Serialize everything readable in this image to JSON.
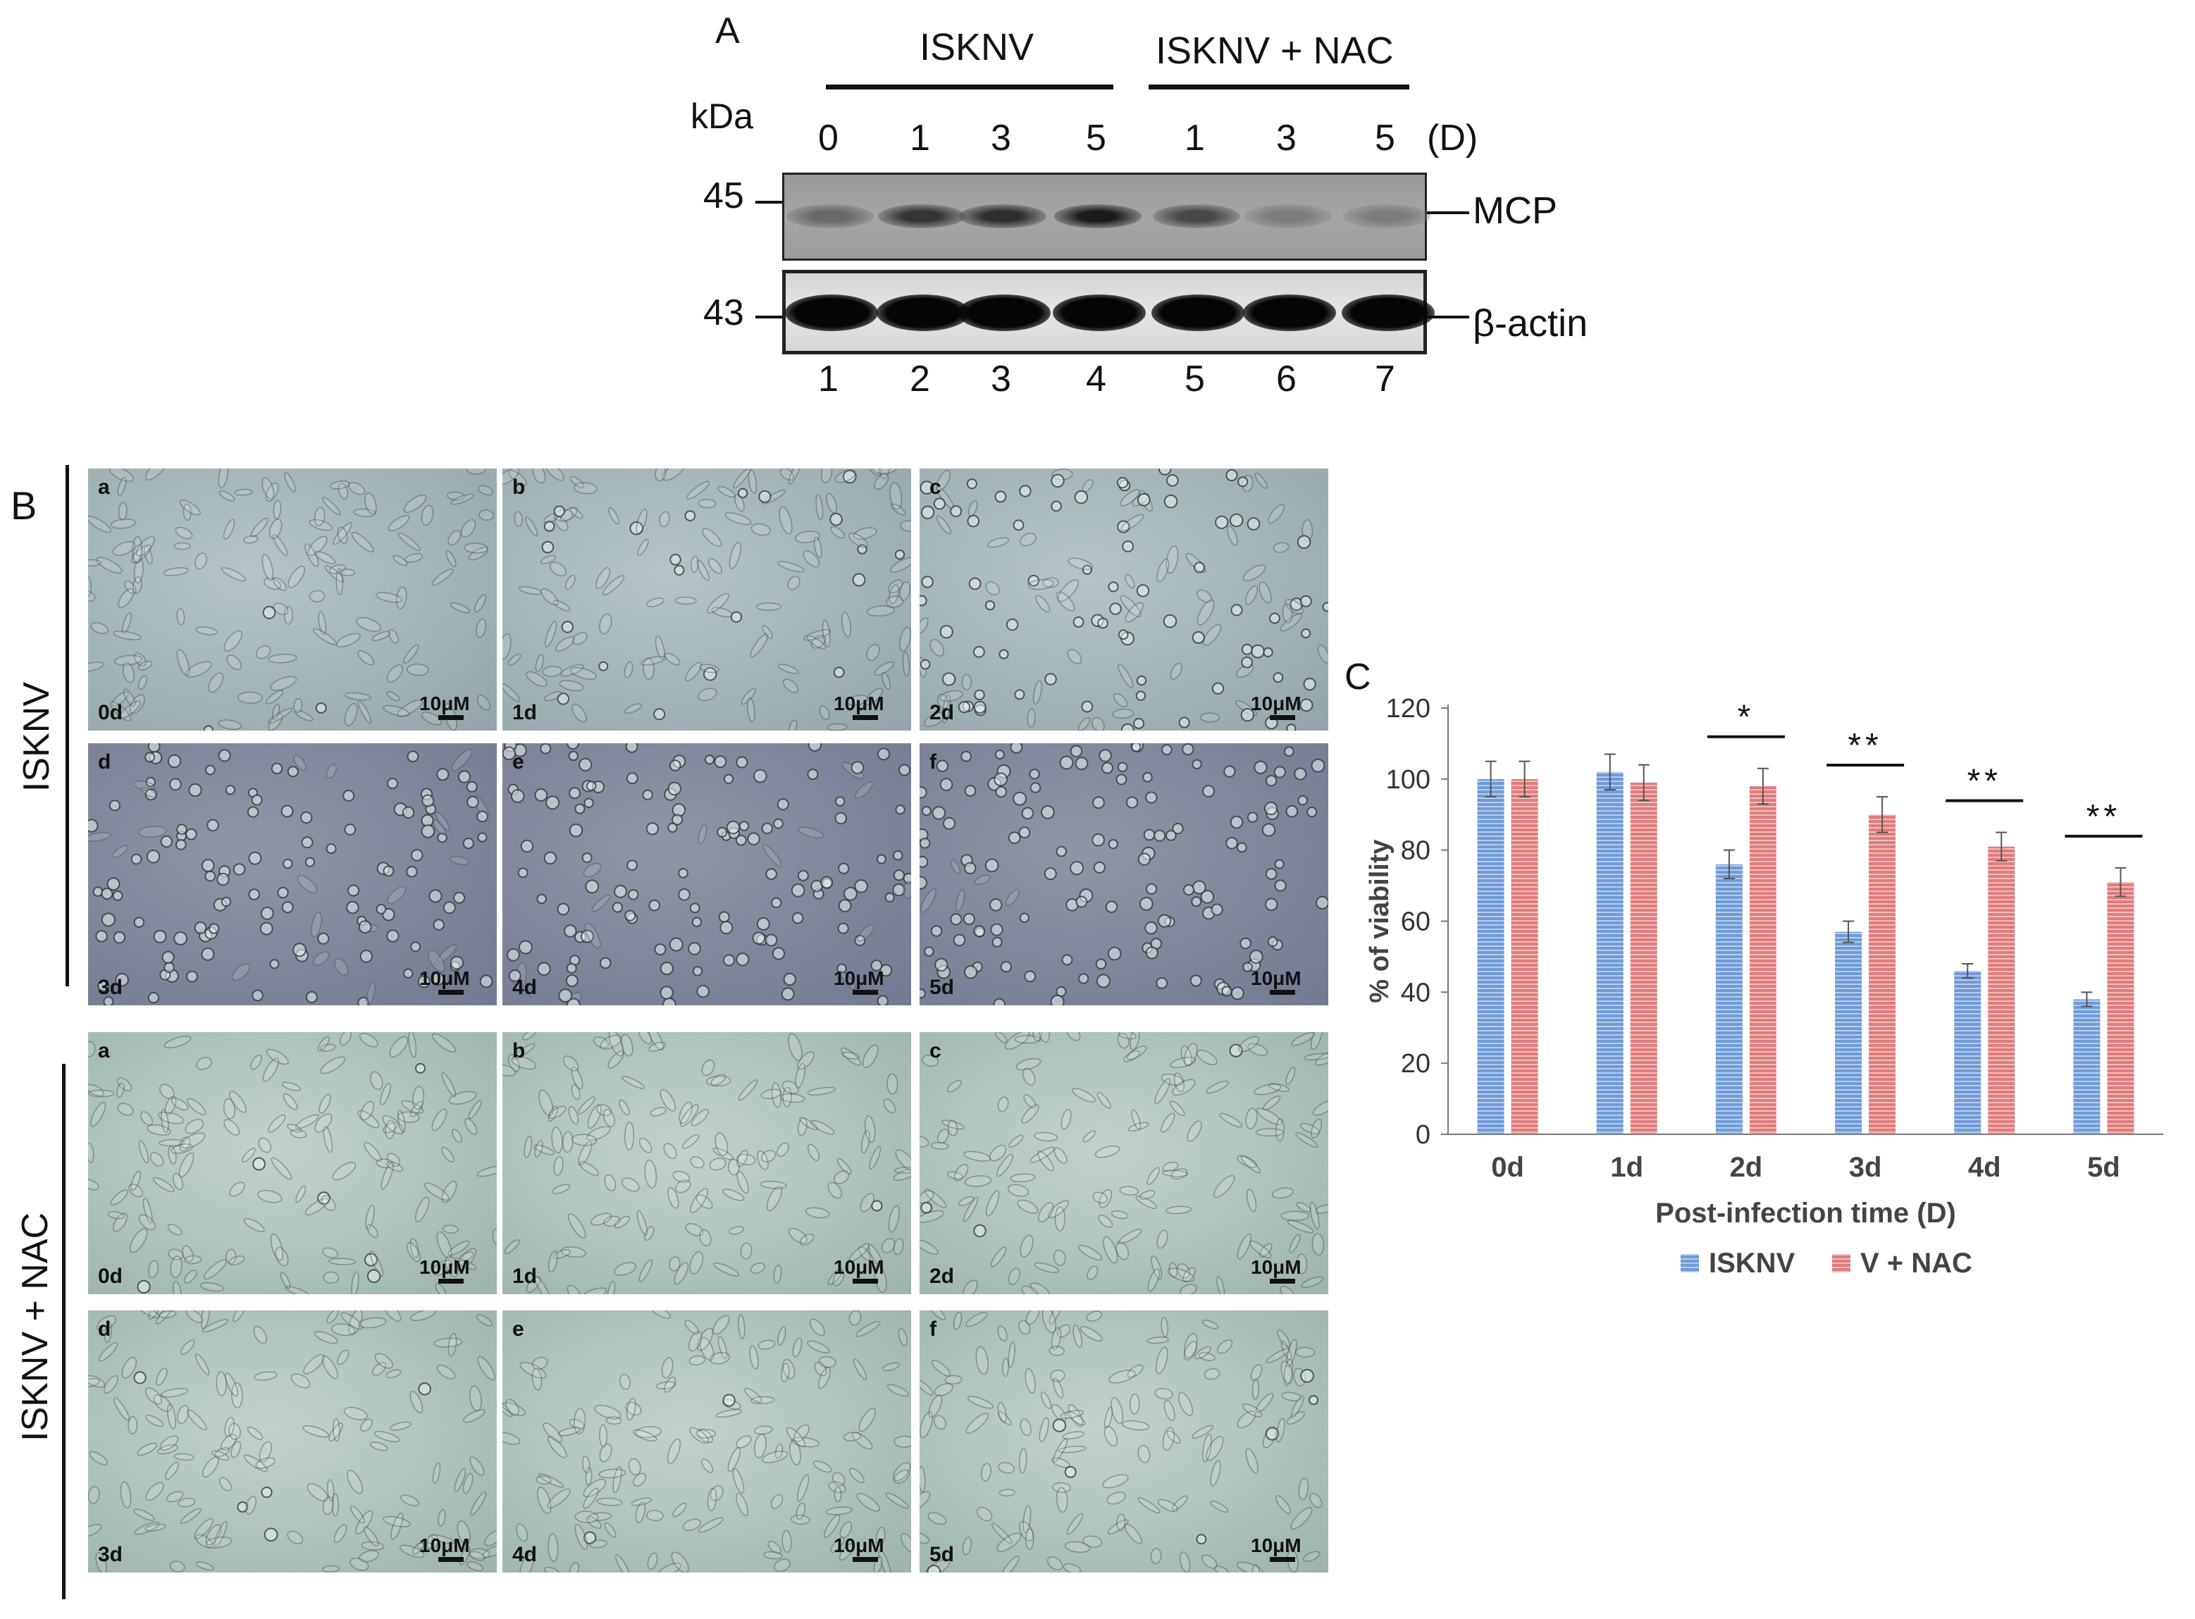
{
  "panel_a": {
    "letter": "A",
    "group1": "ISKNV",
    "group2": "ISKNV + NAC",
    "kda": "kDa",
    "days": [
      "0",
      "1",
      "3",
      "5",
      "1",
      "3",
      "5"
    ],
    "days_unit": "(D)",
    "mw_top": "45",
    "mw_bottom": "43",
    "label_top": "MCP",
    "label_bottom": "β-actin",
    "lanes": [
      "1",
      "2",
      "3",
      "4",
      "5",
      "6",
      "7"
    ],
    "mcp_intensity": [
      0.35,
      0.75,
      0.8,
      0.95,
      0.6,
      0.2,
      0.2
    ]
  },
  "panel_b": {
    "letter": "B",
    "group1": "ISKNV",
    "group2": "ISKNV + NAC",
    "scale": "10μM",
    "rows": [
      [
        {
          "letter": "a",
          "time": "0d"
        },
        {
          "letter": "b",
          "time": "1d"
        },
        {
          "letter": "c",
          "time": "2d"
        }
      ],
      [
        {
          "letter": "d",
          "time": "3d"
        },
        {
          "letter": "e",
          "time": "4d"
        },
        {
          "letter": "f",
          "time": "5d"
        }
      ],
      [
        {
          "letter": "a",
          "time": "0d"
        },
        {
          "letter": "b",
          "time": "1d"
        },
        {
          "letter": "c",
          "time": "2d"
        }
      ],
      [
        {
          "letter": "d",
          "time": "3d"
        },
        {
          "letter": "e",
          "time": "4d"
        },
        {
          "letter": "f",
          "time": "5d"
        }
      ]
    ]
  },
  "panel_c": {
    "letter": "C"
  },
  "chart_data": {
    "type": "bar",
    "categories": [
      "0d",
      "1d",
      "2d",
      "3d",
      "4d",
      "5d"
    ],
    "series": [
      {
        "name": "ISKNV",
        "values": [
          100,
          102,
          76,
          57,
          46,
          38
        ],
        "errors": [
          5,
          5,
          4,
          3,
          2,
          2
        ],
        "color": "#6f9bd8"
      },
      {
        "name": "V + NAC",
        "values": [
          100,
          99,
          98,
          90,
          81,
          71
        ],
        "errors": [
          5,
          5,
          5,
          5,
          4,
          4
        ],
        "color": "#e07c7b"
      }
    ],
    "significance": [
      "",
      "",
      "*",
      "**",
      "**",
      "**"
    ],
    "xlabel": "Post-infection time (D)",
    "ylabel": "% of viability",
    "ylim": [
      0,
      120
    ],
    "yticks": [
      0,
      20,
      40,
      60,
      80,
      100,
      120
    ],
    "grid": false,
    "legend": "bottom"
  }
}
